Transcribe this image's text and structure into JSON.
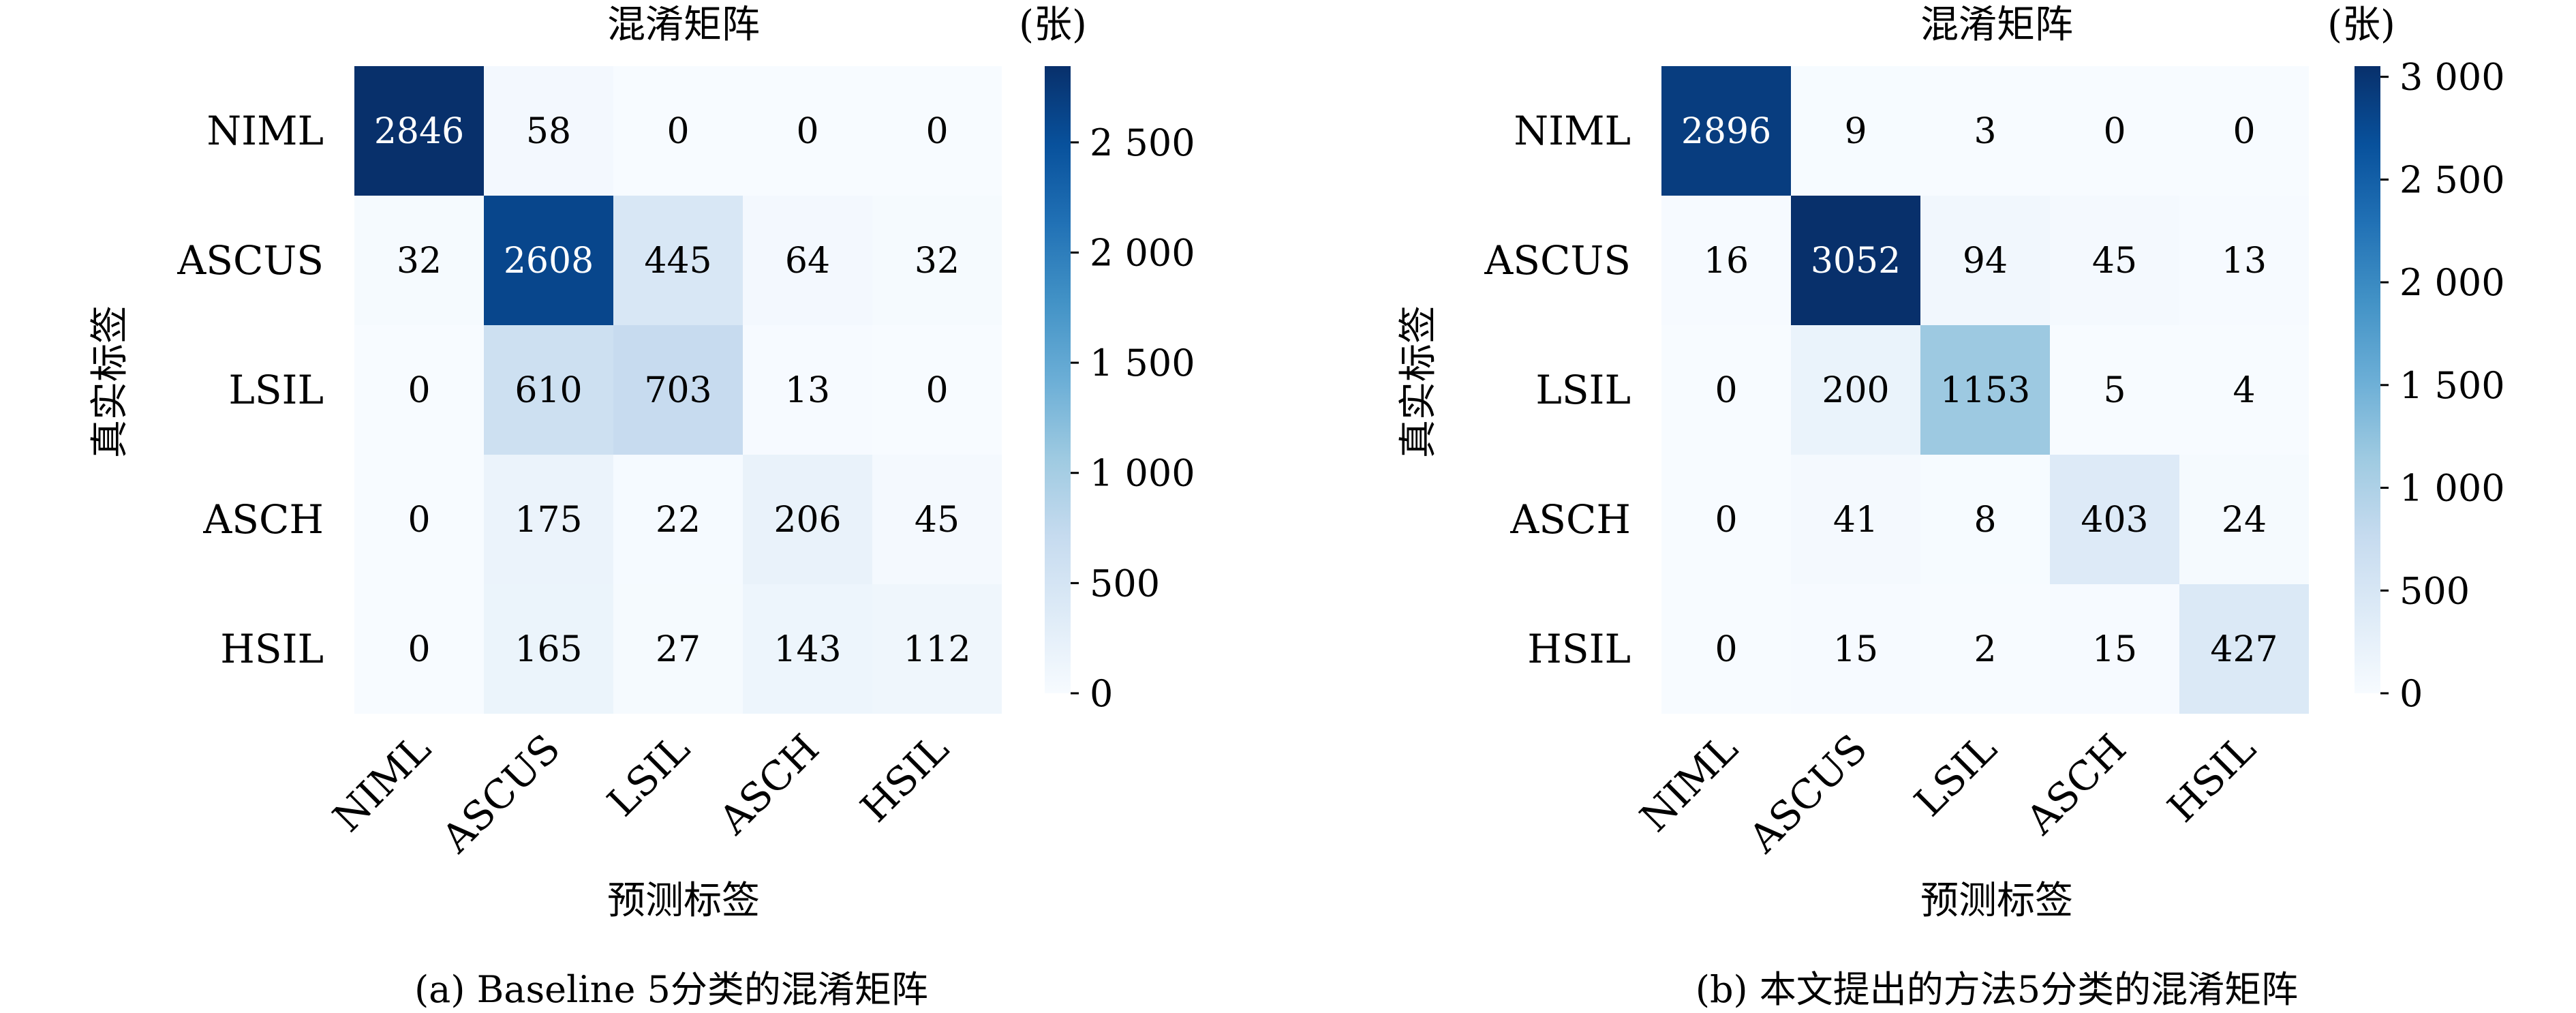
{
  "chart_data": [
    {
      "type": "heatmap",
      "title": "混淆矩阵",
      "unit": "(张)",
      "xlabel": "预测标签",
      "ylabel": "真实标签",
      "caption": "(a) Baseline 5分类的混淆矩阵",
      "x_categories": [
        "NIML",
        "ASCUS",
        "LSIL",
        "ASCH",
        "HSIL"
      ],
      "y_categories": [
        "NIML",
        "ASCUS",
        "LSIL",
        "ASCH",
        "HSIL"
      ],
      "values": [
        [
          2846,
          58,
          0,
          0,
          0
        ],
        [
          32,
          2608,
          445,
          64,
          32
        ],
        [
          0,
          610,
          703,
          13,
          0
        ],
        [
          0,
          175,
          22,
          206,
          45
        ],
        [
          0,
          165,
          27,
          143,
          112
        ]
      ],
      "colorscale": "Blues",
      "vmin": 0,
      "vmax": 2846,
      "colorbar_ticks": [
        0,
        500,
        1000,
        1500,
        2000,
        2500
      ],
      "colorbar_tick_labels": [
        "0",
        "500",
        "1 000",
        "1 500",
        "2 000",
        "2 500"
      ]
    },
    {
      "type": "heatmap",
      "title": "混淆矩阵",
      "unit": "(张)",
      "xlabel": "预测标签",
      "ylabel": "真实标签",
      "caption": "(b) 本文提出的方法5分类的混淆矩阵",
      "x_categories": [
        "NIML",
        "ASCUS",
        "LSIL",
        "ASCH",
        "HSIL"
      ],
      "y_categories": [
        "NIML",
        "ASCUS",
        "LSIL",
        "ASCH",
        "HSIL"
      ],
      "values": [
        [
          2896,
          9,
          3,
          0,
          0
        ],
        [
          16,
          3052,
          94,
          45,
          13
        ],
        [
          0,
          200,
          1153,
          5,
          4
        ],
        [
          0,
          41,
          8,
          403,
          24
        ],
        [
          0,
          15,
          2,
          15,
          427
        ]
      ],
      "colorscale": "Blues",
      "vmin": 0,
      "vmax": 3052,
      "colorbar_ticks": [
        0,
        500,
        1000,
        1500,
        2000,
        2500,
        3000
      ],
      "colorbar_tick_labels": [
        "0",
        "500",
        "1 000",
        "1 500",
        "2 000",
        "2 500",
        "3 000"
      ]
    }
  ]
}
